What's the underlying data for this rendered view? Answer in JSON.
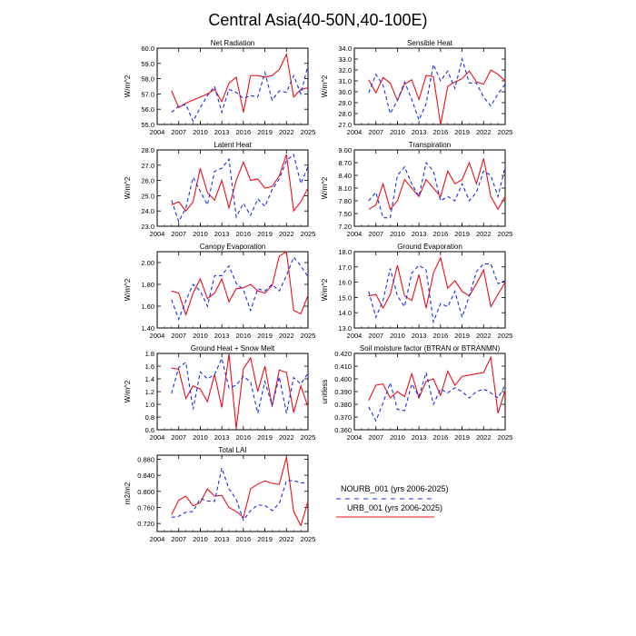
{
  "title": "Central Asia(40-50N,40-100E)",
  "colors": {
    "urb": "#e8101e",
    "nourb": "#1a2ee8"
  },
  "legend": [
    {
      "label": "NOURB_001 (yrs 2006-2025)",
      "series": "nourb",
      "dash": true
    },
    {
      "label": "URB_001 (yrs 2006-2025)",
      "series": "urb",
      "dash": false
    }
  ],
  "chart_data": [
    {
      "type": "line",
      "title": "Net Radiation",
      "ylabel": "W/m^2",
      "xlim": [
        2004,
        2025
      ],
      "xticks": [
        "2004",
        "2007",
        "2010",
        "2013",
        "2016",
        "2019",
        "2022",
        "2025"
      ],
      "ylim": [
        55.0,
        60.0
      ],
      "yticks": [
        "55.0",
        "56.0",
        "57.0",
        "58.0",
        "59.0",
        "60.0"
      ],
      "x": [
        2006,
        2007,
        2008,
        2009,
        2010,
        2011,
        2012,
        2013,
        2014,
        2015,
        2016,
        2017,
        2018,
        2019,
        2020,
        2021,
        2022,
        2023,
        2024,
        2025
      ],
      "series": [
        {
          "key": "urb",
          "values": [
            57.2,
            56.1,
            56.4,
            56.6,
            56.8,
            57.0,
            57.3,
            56.5,
            57.7,
            58.1,
            55.8,
            58.2,
            58.2,
            58.1,
            58.2,
            58.6,
            59.6,
            56.8,
            57.3,
            57.4
          ]
        },
        {
          "key": "nourb",
          "values": [
            55.8,
            56.2,
            56.3,
            55.2,
            56.1,
            56.9,
            57.5,
            55.8,
            57.3,
            57.1,
            56.7,
            56.9,
            56.8,
            58.4,
            56.6,
            57.2,
            57.1,
            58.2,
            57.0,
            58.9
          ]
        }
      ]
    },
    {
      "type": "line",
      "title": "Sensible Heat",
      "ylabel": "W/m^2",
      "xlim": [
        2004,
        2025
      ],
      "xticks": [
        "2004",
        "2007",
        "2010",
        "2013",
        "2016",
        "2019",
        "2022",
        "2025"
      ],
      "ylim": [
        27.0,
        34.0
      ],
      "yticks": [
        "27.0",
        "28.0",
        "29.0",
        "30.0",
        "31.0",
        "32.0",
        "33.0",
        "34.0"
      ],
      "x": [
        2006,
        2007,
        2008,
        2009,
        2010,
        2011,
        2012,
        2013,
        2014,
        2015,
        2016,
        2017,
        2018,
        2019,
        2020,
        2021,
        2022,
        2023,
        2024,
        2025
      ],
      "series": [
        {
          "key": "urb",
          "values": [
            31.1,
            29.9,
            31.3,
            30.8,
            29.2,
            30.7,
            31.1,
            29.3,
            31.5,
            31.4,
            27.0,
            30.5,
            30.9,
            31.2,
            31.9,
            30.9,
            30.7,
            32.0,
            31.6,
            31.0
          ]
        },
        {
          "key": "nourb",
          "values": [
            29.9,
            31.6,
            30.6,
            28.0,
            29.2,
            30.9,
            29.3,
            27.4,
            28.9,
            32.5,
            31.0,
            31.9,
            30.3,
            33.0,
            30.8,
            30.8,
            29.5,
            28.7,
            29.8,
            30.7
          ]
        }
      ]
    },
    {
      "type": "line",
      "title": "Latent Heat",
      "ylabel": "W/m^2",
      "xlim": [
        2004,
        2025
      ],
      "xticks": [
        "2004",
        "2007",
        "2010",
        "2013",
        "2016",
        "2019",
        "2022",
        "2025"
      ],
      "ylim": [
        23.0,
        28.0
      ],
      "yticks": [
        "23.0",
        "24.0",
        "25.0",
        "26.0",
        "27.0",
        "28.0"
      ],
      "x": [
        2006,
        2007,
        2008,
        2009,
        2010,
        2011,
        2012,
        2013,
        2014,
        2015,
        2016,
        2017,
        2018,
        2019,
        2020,
        2021,
        2022,
        2023,
        2024,
        2025
      ],
      "series": [
        {
          "key": "urb",
          "values": [
            24.4,
            24.6,
            24.0,
            24.6,
            26.8,
            25.2,
            24.7,
            26.0,
            24.2,
            26.0,
            27.2,
            26.0,
            26.1,
            25.5,
            25.6,
            26.3,
            27.7,
            24.0,
            24.6,
            25.5
          ]
        },
        {
          "key": "nourb",
          "values": [
            24.7,
            23.3,
            24.2,
            26.2,
            25.3,
            24.4,
            26.6,
            26.8,
            27.4,
            23.6,
            24.5,
            23.7,
            24.8,
            24.3,
            25.4,
            26.1,
            27.3,
            27.7,
            25.8,
            26.9
          ]
        }
      ]
    },
    {
      "type": "line",
      "title": "Transpiration",
      "ylabel": "W/m^2",
      "xlim": [
        2004,
        2025
      ],
      "xticks": [
        "2004",
        "2007",
        "2010",
        "2013",
        "2016",
        "2019",
        "2022",
        "2025"
      ],
      "ylim": [
        7.2,
        9.0
      ],
      "yticks": [
        "7.20",
        "7.50",
        "7.80",
        "8.10",
        "8.40",
        "8.70",
        "9.00"
      ],
      "x": [
        2006,
        2007,
        2008,
        2009,
        2010,
        2011,
        2012,
        2013,
        2014,
        2015,
        2016,
        2017,
        2018,
        2019,
        2020,
        2021,
        2022,
        2023,
        2024,
        2025
      ],
      "series": [
        {
          "key": "urb",
          "values": [
            7.6,
            7.7,
            8.2,
            7.6,
            7.8,
            8.3,
            8.1,
            7.9,
            8.3,
            8.1,
            7.9,
            8.5,
            8.2,
            8.3,
            8.7,
            8.2,
            8.8,
            7.9,
            7.6,
            7.9
          ]
        },
        {
          "key": "nourb",
          "values": [
            7.8,
            8.0,
            7.4,
            7.4,
            8.4,
            8.6,
            8.2,
            7.9,
            8.7,
            8.5,
            7.8,
            7.9,
            7.8,
            8.2,
            7.8,
            8.0,
            8.5,
            8.4,
            7.9,
            8.6
          ]
        }
      ]
    },
    {
      "type": "line",
      "title": "Canopy Evaporation",
      "ylabel": "W/m^2",
      "xlim": [
        2004,
        2025
      ],
      "xticks": [
        "2004",
        "2007",
        "2010",
        "2013",
        "2016",
        "2019",
        "2022",
        "2025"
      ],
      "ylim": [
        1.4,
        2.1
      ],
      "yticks": [
        "1.40",
        "1.60",
        "1.80",
        "2.00"
      ],
      "x": [
        2006,
        2007,
        2008,
        2009,
        2010,
        2011,
        2012,
        2013,
        2014,
        2015,
        2016,
        2017,
        2018,
        2019,
        2020,
        2021,
        2022,
        2023,
        2024,
        2025
      ],
      "series": [
        {
          "key": "urb",
          "values": [
            1.74,
            1.72,
            1.52,
            1.72,
            1.85,
            1.67,
            1.72,
            1.85,
            1.64,
            1.76,
            1.77,
            1.8,
            1.74,
            1.72,
            1.79,
            2.06,
            2.1,
            1.56,
            1.53,
            1.7
          ]
        },
        {
          "key": "nourb",
          "values": [
            1.66,
            1.48,
            1.65,
            1.8,
            1.74,
            1.6,
            1.88,
            1.88,
            1.97,
            1.81,
            1.75,
            1.56,
            1.76,
            1.74,
            1.8,
            1.74,
            1.88,
            2.05,
            1.97,
            1.87
          ]
        }
      ]
    },
    {
      "type": "line",
      "title": "Ground Evaporation",
      "ylabel": "W/m^2",
      "xlim": [
        2004,
        2025
      ],
      "xticks": [
        "2004",
        "2007",
        "2010",
        "2013",
        "2016",
        "2019",
        "2022",
        "2025"
      ],
      "ylim": [
        13.0,
        18.0
      ],
      "yticks": [
        "13.0",
        "14.0",
        "15.0",
        "16.0",
        "17.0",
        "18.0"
      ],
      "x": [
        2006,
        2007,
        2008,
        2009,
        2010,
        2011,
        2012,
        2013,
        2014,
        2015,
        2016,
        2017,
        2018,
        2019,
        2020,
        2021,
        2022,
        2023,
        2024,
        2025
      ],
      "series": [
        {
          "key": "urb",
          "values": [
            15.1,
            15.2,
            14.3,
            15.2,
            17.1,
            15.1,
            14.8,
            16.5,
            14.3,
            16.6,
            17.6,
            15.6,
            16.1,
            15.4,
            15.1,
            15.9,
            16.8,
            14.4,
            15.2,
            16.0
          ]
        },
        {
          "key": "nourb",
          "values": [
            15.4,
            13.7,
            14.8,
            16.9,
            15.1,
            14.4,
            16.6,
            17.1,
            16.8,
            13.4,
            14.6,
            14.4,
            15.4,
            13.7,
            15.1,
            16.7,
            17.2,
            17.2,
            15.9,
            16.1
          ]
        }
      ]
    },
    {
      "type": "line",
      "title": "Ground Heat + Snow Melt",
      "ylabel": "W/m^2",
      "xlim": [
        2004,
        2025
      ],
      "xticks": [
        "2004",
        "2007",
        "2010",
        "2013",
        "2016",
        "2019",
        "2022",
        "2025"
      ],
      "ylim": [
        0.6,
        1.8
      ],
      "yticks": [
        "0.6",
        "0.8",
        "1.0",
        "1.2",
        "1.4",
        "1.6",
        "1.8"
      ],
      "x": [
        2006,
        2007,
        2008,
        2009,
        2010,
        2011,
        2012,
        2013,
        2014,
        2015,
        2016,
        2017,
        2018,
        2019,
        2020,
        2021,
        2022,
        2023,
        2024,
        2025
      ],
      "series": [
        {
          "key": "urb",
          "values": [
            1.57,
            1.55,
            1.09,
            1.29,
            1.24,
            1.04,
            1.47,
            0.95,
            1.79,
            0.62,
            1.56,
            1.73,
            1.2,
            1.6,
            0.97,
            1.54,
            1.5,
            0.87,
            1.29,
            0.96
          ]
        },
        {
          "key": "nourb",
          "values": [
            1.17,
            1.58,
            1.66,
            0.92,
            1.51,
            1.4,
            1.47,
            1.72,
            1.26,
            1.3,
            1.44,
            1.35,
            0.86,
            1.36,
            0.98,
            1.43,
            0.86,
            1.42,
            1.32,
            1.49
          ]
        }
      ]
    },
    {
      "type": "line",
      "title": "Soil moisture factor (BTRAN or BTRANMN)",
      "ylabel": "unitless",
      "xlim": [
        2004,
        2025
      ],
      "xticks": [
        "2004",
        "2007",
        "2010",
        "2013",
        "2016",
        "2019",
        "2022",
        "2025"
      ],
      "ylim": [
        0.36,
        0.42
      ],
      "yticks": [
        "0.360",
        "0.370",
        "0.380",
        "0.390",
        "0.400",
        "0.410",
        "0.420"
      ],
      "x": [
        2006,
        2007,
        2008,
        2009,
        2010,
        2011,
        2012,
        2013,
        2014,
        2015,
        2016,
        2017,
        2018,
        2019,
        2020,
        2021,
        2022,
        2023,
        2024,
        2025
      ],
      "series": [
        {
          "key": "urb",
          "values": [
            0.383,
            0.395,
            0.396,
            0.385,
            0.39,
            0.386,
            0.404,
            0.385,
            0.398,
            0.4,
            0.387,
            0.406,
            0.395,
            0.402,
            0.403,
            0.404,
            0.405,
            0.417,
            0.373,
            0.391
          ]
        },
        {
          "key": "nourb",
          "values": [
            0.378,
            0.367,
            0.381,
            0.397,
            0.376,
            0.375,
            0.396,
            0.386,
            0.405,
            0.38,
            0.392,
            0.389,
            0.393,
            0.39,
            0.385,
            0.39,
            0.392,
            0.389,
            0.385,
            0.395
          ]
        }
      ]
    },
    {
      "type": "line",
      "title": "Total LAI",
      "ylabel": "m2/m2",
      "xlim": [
        2004,
        2025
      ],
      "xticks": [
        "2004",
        "2007",
        "2010",
        "2013",
        "2016",
        "2019",
        "2022",
        "2025"
      ],
      "ylim": [
        0.7,
        0.89
      ],
      "yticks": [
        "0.720",
        "0.760",
        "0.800",
        "0.840",
        "0.880"
      ],
      "x": [
        2006,
        2007,
        2008,
        2009,
        2010,
        2011,
        2012,
        2013,
        2014,
        2015,
        2016,
        2017,
        2018,
        2019,
        2020,
        2021,
        2022,
        2023,
        2024,
        2025
      ],
      "series": [
        {
          "key": "urb",
          "values": [
            0.742,
            0.778,
            0.788,
            0.764,
            0.772,
            0.806,
            0.788,
            0.79,
            0.76,
            0.75,
            0.735,
            0.806,
            0.818,
            0.826,
            0.82,
            0.817,
            0.885,
            0.75,
            0.715,
            0.775
          ]
        },
        {
          "key": "nourb",
          "values": [
            0.735,
            0.738,
            0.748,
            0.75,
            0.782,
            0.776,
            0.775,
            0.858,
            0.806,
            0.78,
            0.728,
            0.752,
            0.766,
            0.765,
            0.752,
            0.77,
            0.826,
            0.827,
            0.821,
            0.822
          ]
        }
      ]
    }
  ]
}
